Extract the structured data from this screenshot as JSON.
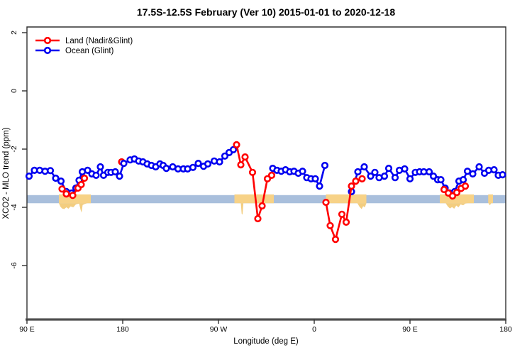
{
  "title": "17.5S-12.5S February (Ver 10)   2015-01-01 to 2020-12-18",
  "legend": [
    {
      "label": "Land (Nadir&Glint)",
      "color": "#FF0000"
    },
    {
      "label": "Ocean (Glint)",
      "color": "#0000F0"
    }
  ],
  "axes": {
    "x": {
      "label": "Longitude (deg E)",
      "range": [
        90,
        540
      ],
      "ticks": [
        {
          "lon": 90,
          "text": "90 E"
        },
        {
          "lon": 180,
          "text": "180"
        },
        {
          "lon": 270,
          "text": "90 W"
        },
        {
          "lon": 360,
          "text": "0"
        },
        {
          "lon": 450,
          "text": "90 E"
        },
        {
          "lon": 540,
          "text": "180"
        }
      ]
    },
    "y": {
      "label": "XCO2 - MLO trend (ppm)",
      "range": [
        -7.6,
        2.2
      ],
      "ticks": [
        {
          "v": 2,
          "text": "2"
        },
        {
          "v": 0,
          "text": "0"
        },
        {
          "v": -2,
          "text": "-2"
        },
        {
          "v": -4,
          "text": "-4"
        },
        {
          "v": -6,
          "text": "-6"
        }
      ]
    }
  },
  "chart_data": {
    "type": "line",
    "title": "17.5S-12.5S February (Ver 10)   2015-01-01 to 2020-12-18",
    "xlabel": "Longitude (deg E)",
    "ylabel": "XCO2 - MLO trend (ppm)",
    "xlim": [
      90,
      540
    ],
    "ylim": [
      -7.6,
      2.2
    ],
    "grid": false,
    "legend_position": "top-left-inside",
    "band": {
      "description": "horizontal reference band with land-longitude highlights",
      "ppm_top": -3.58,
      "ppm_bottom": -3.86,
      "ocean_color": "#A9BFDC",
      "land_color": "#F7D287",
      "terrain_color": "#F3CD7F",
      "land_segments_lon": [
        [
          120,
          150
        ],
        [
          285,
          322
        ],
        [
          371,
          409
        ],
        [
          478,
          510
        ],
        [
          523.5,
          528
        ]
      ],
      "terrain_profiles": [
        [
          [
            120,
            -3.86
          ],
          [
            121.5,
            -3.98
          ],
          [
            123,
            -4.04
          ],
          [
            125,
            -4.06
          ],
          [
            127,
            -4.0
          ],
          [
            129,
            -4.05
          ],
          [
            131,
            -3.97
          ],
          [
            133.5,
            -4.0
          ],
          [
            136,
            -3.9
          ],
          [
            139,
            -3.87
          ],
          [
            140.5,
            -4.1
          ],
          [
            141.3,
            -4.18
          ],
          [
            142.3,
            -3.92
          ],
          [
            144.5,
            -3.88
          ],
          [
            147,
            -3.86
          ]
        ],
        [
          [
            291,
            -3.86
          ],
          [
            291.8,
            -4.22
          ],
          [
            292.6,
            -4.25
          ],
          [
            293.4,
            -3.86
          ]
        ],
        [
          [
            400.5,
            -3.86
          ],
          [
            402.5,
            -3.98
          ],
          [
            404.5,
            -4.06
          ],
          [
            406,
            -3.96
          ],
          [
            407.5,
            -4.0
          ],
          [
            409,
            -3.86
          ]
        ],
        [
          [
            483.5,
            -3.86
          ],
          [
            485.5,
            -3.97
          ],
          [
            487.5,
            -4.04
          ],
          [
            489.5,
            -3.99
          ],
          [
            491.5,
            -4.05
          ],
          [
            493.5,
            -3.94
          ],
          [
            495.5,
            -4.0
          ],
          [
            497.5,
            -3.9
          ],
          [
            500,
            -3.93
          ],
          [
            502,
            -3.87
          ],
          [
            505,
            -3.86
          ]
        ],
        [
          [
            524,
            -3.86
          ],
          [
            524.8,
            -3.93
          ],
          [
            525.6,
            -3.9
          ],
          [
            526.4,
            -3.86
          ]
        ]
      ]
    },
    "series": [
      {
        "name": "Ocean (Glint)",
        "color": "#0000F0",
        "marker": "open-circle",
        "segments": [
          [
            [
              92,
              -2.93
            ],
            [
              97,
              -2.73
            ],
            [
              102,
              -2.73
            ],
            [
              107,
              -2.76
            ],
            [
              112,
              -2.74
            ],
            [
              117,
              -3.0
            ],
            [
              122,
              -3.1
            ],
            [
              127,
              -3.46
            ],
            [
              132,
              -3.51
            ],
            [
              136,
              -3.34
            ],
            [
              139,
              -3.07
            ],
            [
              142,
              -2.78
            ],
            [
              147,
              -2.73
            ],
            [
              151,
              -2.85
            ],
            [
              155,
              -2.9
            ],
            [
              159,
              -2.61
            ],
            [
              162,
              -2.9
            ],
            [
              166,
              -2.8
            ],
            [
              169,
              -2.8
            ],
            [
              173,
              -2.78
            ],
            [
              177,
              -2.93
            ],
            [
              181,
              -2.49
            ],
            [
              187,
              -2.37
            ],
            [
              191,
              -2.34
            ],
            [
              195,
              -2.41
            ],
            [
              199,
              -2.44
            ],
            [
              203,
              -2.51
            ],
            [
              207,
              -2.56
            ],
            [
              211,
              -2.61
            ],
            [
              215,
              -2.51
            ],
            [
              218,
              -2.56
            ],
            [
              221,
              -2.66
            ],
            [
              227,
              -2.61
            ],
            [
              232,
              -2.68
            ],
            [
              237,
              -2.68
            ],
            [
              241,
              -2.68
            ],
            [
              246,
              -2.63
            ],
            [
              251,
              -2.49
            ],
            [
              256,
              -2.59
            ],
            [
              260,
              -2.51
            ],
            [
              266,
              -2.41
            ],
            [
              271,
              -2.44
            ],
            [
              276,
              -2.24
            ],
            [
              280,
              -2.12
            ],
            [
              284,
              -2.02
            ]
          ],
          [
            [
              321,
              -2.66
            ],
            [
              325,
              -2.73
            ],
            [
              329,
              -2.76
            ],
            [
              333,
              -2.71
            ],
            [
              337,
              -2.78
            ],
            [
              341,
              -2.76
            ],
            [
              345,
              -2.83
            ],
            [
              349,
              -2.76
            ],
            [
              353,
              -2.98
            ],
            [
              357,
              -3.02
            ],
            [
              361,
              -3.02
            ],
            [
              365,
              -3.27
            ],
            [
              370,
              -2.56
            ]
          ],
          [
            [
              395,
              -3.46
            ],
            [
              401,
              -2.78
            ],
            [
              407,
              -2.61
            ],
            [
              413,
              -2.93
            ],
            [
              417,
              -2.8
            ],
            [
              421,
              -2.98
            ],
            [
              426,
              -2.93
            ],
            [
              430,
              -2.66
            ],
            [
              436,
              -2.98
            ],
            [
              440,
              -2.73
            ],
            [
              445,
              -2.68
            ],
            [
              450,
              -3.02
            ],
            [
              455,
              -2.8
            ],
            [
              459,
              -2.78
            ],
            [
              463,
              -2.78
            ],
            [
              468,
              -2.78
            ],
            [
              472,
              -2.93
            ],
            [
              476,
              -3.05
            ],
            [
              479,
              -3.05
            ],
            [
              483,
              -3.34
            ],
            [
              487,
              -3.51
            ],
            [
              492,
              -3.46
            ],
            [
              496,
              -3.1
            ],
            [
              500,
              -3.05
            ],
            [
              504,
              -2.76
            ],
            [
              509,
              -2.85
            ],
            [
              515,
              -2.61
            ],
            [
              520,
              -2.83
            ],
            [
              524,
              -2.73
            ],
            [
              529,
              -2.71
            ],
            [
              533,
              -2.9
            ],
            [
              537,
              -2.88
            ]
          ]
        ]
      },
      {
        "name": "Land (Nadir&Glint)",
        "color": "#FF0000",
        "marker": "open-circle",
        "segments": [
          [
            [
              123,
              -3.37
            ],
            [
              127,
              -3.54
            ],
            [
              133,
              -3.59
            ],
            [
              138,
              -3.34
            ],
            [
              141,
              -3.22
            ],
            [
              144,
              -3.0
            ]
          ],
          [
            [
              179,
              -2.44
            ]
          ],
          [
            [
              287,
              -1.85
            ],
            [
              291,
              -2.54
            ],
            [
              295,
              -2.27
            ],
            [
              302,
              -2.8
            ],
            [
              307,
              -4.39
            ],
            [
              311,
              -3.95
            ],
            [
              316,
              -3.02
            ],
            [
              320,
              -2.9
            ]
          ],
          [
            [
              371,
              -3.83
            ],
            [
              375,
              -4.63
            ],
            [
              380,
              -5.1
            ],
            [
              386,
              -4.24
            ],
            [
              390,
              -4.51
            ],
            [
              395,
              -3.27
            ],
            [
              399,
              -3.1
            ],
            [
              405,
              -3.02
            ]
          ],
          [
            [
              482,
              -3.39
            ],
            [
              486,
              -3.51
            ],
            [
              490,
              -3.61
            ],
            [
              494,
              -3.49
            ],
            [
              498,
              -3.35
            ],
            [
              502,
              -3.27
            ]
          ]
        ]
      }
    ]
  },
  "style": {
    "axis_color": "#303030",
    "baseline_color": "#4F4F4F",
    "background": "#FFFFFF"
  }
}
